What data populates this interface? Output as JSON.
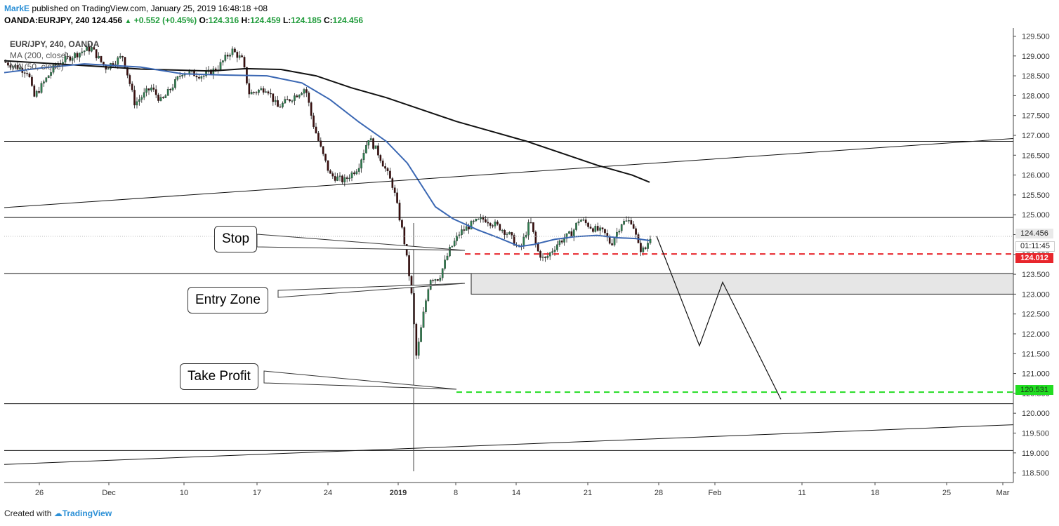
{
  "header": {
    "author": "MarkE",
    "published": " published on TradingView.com, January 25, 2019 16:48:18 +08",
    "symbol_line": "OANDA:EURJPY, 240",
    "last": "124.456",
    "change": "+0.552 (+0.45%)",
    "o_label": "O:",
    "o_val": "124.316",
    "h_label": "H:",
    "h_val": "124.459",
    "l_label": "L:",
    "l_val": "124.185",
    "c_label": "C:",
    "c_val": "124.456"
  },
  "legend": {
    "title": "EUR/JPY, 240, OANDA",
    "ma200": "MA (200, close)",
    "ma50": "MA (50, close)"
  },
  "callouts": {
    "stop": "Stop",
    "entry": "Entry Zone",
    "take_profit": "Take Profit"
  },
  "tags": {
    "last_price": "124.456",
    "countdown": "01:11:45",
    "stop_price": "124.012",
    "tp_price": "120.531"
  },
  "footer": {
    "created": "Created with",
    "brand": "TradingView"
  },
  "colors": {
    "stop_line": "#e8262c",
    "tp_line": "#22dd22",
    "ma50": "#3a67b3",
    "ma200": "#111111",
    "entry_zone_fill": "#e6e6e6"
  },
  "chart_data": {
    "type": "candlestick",
    "title": "EUR/JPY, 240, OANDA",
    "ylim": [
      118.3,
      129.65
    ],
    "y_ticks": [
      129.5,
      129.0,
      128.5,
      128.0,
      127.5,
      127.0,
      126.5,
      126.0,
      125.5,
      125.0,
      124.5,
      124.0,
      123.5,
      123.0,
      122.5,
      122.0,
      121.5,
      121.0,
      120.5,
      120.0,
      119.5,
      119.0,
      118.5
    ],
    "y_tick_labels": [
      "129.500",
      "129.000",
      "128.500",
      "128.000",
      "127.500",
      "127.000",
      "126.500",
      "126.000",
      "125.500",
      "125.000",
      "124.500",
      "124.000",
      "123.500",
      "123.000",
      "122.500",
      "122.000",
      "121.500",
      "121.000",
      "120.500",
      "120.000",
      "119.500",
      "119.000",
      "118.500"
    ],
    "x_tick_labels": [
      "26",
      "Dec",
      "10",
      "17",
      "24",
      "2019",
      "8",
      "14",
      "21",
      "28",
      "Feb",
      "11",
      "18",
      "25",
      "Mar"
    ],
    "x_ticks": [
      56,
      155,
      262,
      366,
      467,
      567,
      649,
      735,
      837,
      938,
      1018,
      1142,
      1246,
      1348,
      1428
    ],
    "horizontal_levels": [
      126.85,
      124.93,
      123.52,
      120.24,
      119.06
    ],
    "trendlines": [
      {
        "from": [
          6,
          125.18
        ],
        "to": [
          1443,
          126.92
        ]
      },
      {
        "from": [
          6,
          118.71
        ],
        "to": [
          1443,
          119.71
        ]
      }
    ],
    "entry_zone": {
      "low": 123.0,
      "high": 123.52,
      "x_start": 671
    },
    "stop_level": 124.012,
    "take_profit_level": 120.531,
    "last_price": 124.456,
    "projection_path": [
      [
        935,
        124.46
      ],
      [
        996,
        121.7
      ],
      [
        1029,
        123.3
      ],
      [
        1112,
        120.35
      ]
    ],
    "ma200_points": [
      [
        6,
        128.88
      ],
      [
        100,
        128.78
      ],
      [
        200,
        128.67
      ],
      [
        300,
        128.62
      ],
      [
        350,
        128.68
      ],
      [
        400,
        128.66
      ],
      [
        450,
        128.5
      ],
      [
        500,
        128.2
      ],
      [
        550,
        127.95
      ],
      [
        600,
        127.65
      ],
      [
        650,
        127.35
      ],
      [
        700,
        127.1
      ],
      [
        750,
        126.85
      ],
      [
        800,
        126.55
      ],
      [
        850,
        126.25
      ],
      [
        900,
        126.0
      ],
      [
        925,
        125.82
      ]
    ],
    "ma50_points": [
      [
        6,
        128.58
      ],
      [
        60,
        128.7
      ],
      [
        120,
        128.8
      ],
      [
        200,
        128.72
      ],
      [
        260,
        128.55
      ],
      [
        320,
        128.52
      ],
      [
        380,
        128.5
      ],
      [
        430,
        128.32
      ],
      [
        470,
        127.9
      ],
      [
        510,
        127.35
      ],
      [
        550,
        126.85
      ],
      [
        580,
        126.3
      ],
      [
        600,
        125.75
      ],
      [
        620,
        125.2
      ],
      [
        645,
        124.9
      ],
      [
        680,
        124.62
      ],
      [
        710,
        124.42
      ],
      [
        740,
        124.2
      ],
      [
        760,
        124.25
      ],
      [
        790,
        124.38
      ],
      [
        820,
        124.45
      ],
      [
        850,
        124.48
      ],
      [
        880,
        124.42
      ],
      [
        905,
        124.4
      ],
      [
        925,
        124.35
      ]
    ],
    "candle_path": [
      [
        6,
        128.85
      ],
      [
        40,
        128.6
      ],
      [
        48,
        127.95
      ],
      [
        80,
        128.8
      ],
      [
        115,
        129.1
      ],
      [
        130,
        129.2
      ],
      [
        150,
        128.7
      ],
      [
        175,
        129.0
      ],
      [
        192,
        127.8
      ],
      [
        215,
        128.2
      ],
      [
        230,
        127.85
      ],
      [
        260,
        128.6
      ],
      [
        290,
        128.5
      ],
      [
        310,
        128.7
      ],
      [
        330,
        129.15
      ],
      [
        345,
        128.9
      ],
      [
        355,
        128.05
      ],
      [
        380,
        128.2
      ],
      [
        395,
        127.7
      ],
      [
        420,
        128.0
      ],
      [
        435,
        128.2
      ],
      [
        445,
        127.35
      ],
      [
        458,
        126.6
      ],
      [
        470,
        126.0
      ],
      [
        490,
        125.85
      ],
      [
        510,
        126.2
      ],
      [
        525,
        126.95
      ],
      [
        540,
        126.5
      ],
      [
        560,
        125.7
      ],
      [
        575,
        124.4
      ],
      [
        585,
        123.2
      ],
      [
        593,
        121.4
      ],
      [
        603,
        122.5
      ],
      [
        612,
        123.4
      ],
      [
        625,
        123.4
      ],
      [
        640,
        124.1
      ],
      [
        655,
        124.55
      ],
      [
        675,
        124.8
      ],
      [
        690,
        124.9
      ],
      [
        710,
        124.7
      ],
      [
        725,
        124.5
      ],
      [
        740,
        124.1
      ],
      [
        755,
        124.85
      ],
      [
        765,
        124.1
      ],
      [
        775,
        123.85
      ],
      [
        795,
        124.3
      ],
      [
        815,
        124.55
      ],
      [
        825,
        124.9
      ],
      [
        845,
        124.65
      ],
      [
        860,
        124.55
      ],
      [
        870,
        124.25
      ],
      [
        885,
        124.8
      ],
      [
        900,
        124.85
      ],
      [
        910,
        124.15
      ],
      [
        918,
        124.1
      ],
      [
        926,
        124.45
      ]
    ]
  }
}
